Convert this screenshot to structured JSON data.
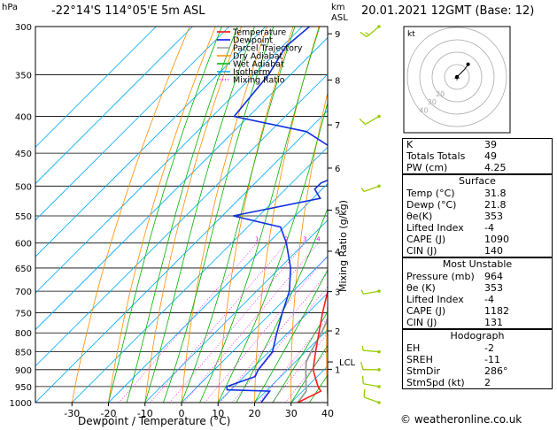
{
  "header": {
    "location": "-22°14'S  114°05'E  5m  ASL",
    "datetime": "20.01.2021  12GMT  (Base: 12)"
  },
  "axes": {
    "pressure_unit": "hPa",
    "height_unit": "km",
    "height_ref": "ASL",
    "xlabel": "Dewpoint / Temperature (°C)",
    "mixing_label": "Mixing Ratio (g/kg)",
    "lcl_label": "LCL"
  },
  "chart_data": {
    "type": "skew-t",
    "pressure_levels": [
      300,
      350,
      400,
      450,
      500,
      550,
      600,
      650,
      700,
      750,
      800,
      850,
      900,
      950,
      1000
    ],
    "temperature_ticks": [
      -30,
      -20,
      -10,
      0,
      10,
      20,
      30,
      40
    ],
    "xlim": [
      -40,
      40
    ],
    "ylim": [
      1000,
      300
    ],
    "km_ticks": [
      {
        "km": "1",
        "p": 899
      },
      {
        "km": "2",
        "p": 795
      },
      {
        "km": "3",
        "p": 701
      },
      {
        "km": "4",
        "p": 616
      },
      {
        "km": "5",
        "p": 540
      },
      {
        "km": "6",
        "p": 472
      },
      {
        "km": "7",
        "p": 411
      },
      {
        "km": "8",
        "p": 356
      },
      {
        "km": "9",
        "p": 307
      }
    ],
    "lcl_p": 878,
    "mixing_ratio_labels": [
      "1",
      "2",
      "3",
      "4",
      "6",
      "8",
      "10",
      "16",
      "20",
      "25"
    ],
    "mixing_ratio_values": [
      1,
      2,
      3,
      4,
      6,
      8,
      10,
      16,
      20,
      25
    ],
    "legend": [
      "Temperature",
      "Dewpoint",
      "Parcel Trajectory",
      "Dry Adiabat",
      "Wet Adiabat",
      "Isotherm",
      "Mixing Ratio"
    ],
    "legend_colors": [
      "#ff0000",
      "#0000ff",
      "#999999",
      "#ff8c00",
      "#00b000",
      "#00aaff",
      "#ff00ff"
    ],
    "temperature": [
      [
        1000,
        31.8
      ],
      [
        964,
        35.0
      ],
      [
        950,
        33.0
      ],
      [
        925,
        30.0
      ],
      [
        900,
        27.0
      ],
      [
        850,
        22.8
      ],
      [
        800,
        18.5
      ],
      [
        750,
        14.0
      ],
      [
        700,
        9.5
      ],
      [
        650,
        5.0
      ],
      [
        600,
        0.0
      ],
      [
        550,
        -5.0
      ],
      [
        500,
        -10.0
      ],
      [
        450,
        -15.5
      ],
      [
        420,
        -19.5
      ],
      [
        400,
        -21.5
      ],
      [
        380,
        -23.5
      ],
      [
        350,
        -28.5
      ]
    ],
    "dewpoint": [
      [
        1000,
        21.8
      ],
      [
        964,
        21.0
      ],
      [
        960,
        9.0
      ],
      [
        950,
        8.0
      ],
      [
        920,
        13.0
      ],
      [
        900,
        12.0
      ],
      [
        850,
        11.0
      ],
      [
        800,
        7.0
      ],
      [
        750,
        3.0
      ],
      [
        700,
        -1.0
      ],
      [
        650,
        -7.0
      ],
      [
        600,
        -15.0
      ],
      [
        570,
        -21.0
      ],
      [
        550,
        -37.0
      ],
      [
        520,
        -18.0
      ],
      [
        505,
        -22.0
      ],
      [
        495,
        -22.0
      ],
      [
        480,
        -18.0
      ],
      [
        450,
        -25.0
      ],
      [
        420,
        -40.0
      ],
      [
        400,
        -64.0
      ],
      [
        350,
        -66.0
      ],
      [
        320,
        -69.0
      ],
      [
        300,
        -68.0
      ]
    ],
    "parcel": [
      [
        1000,
        31.8
      ],
      [
        964,
        31.0
      ],
      [
        900,
        25.0
      ],
      [
        878,
        23.0
      ],
      [
        850,
        21.5
      ],
      [
        800,
        19.2
      ],
      [
        700,
        13.0
      ],
      [
        600,
        6.5
      ],
      [
        500,
        -2.5
      ],
      [
        450,
        -7.5
      ],
      [
        400,
        -14.0
      ],
      [
        350,
        -22.0
      ]
    ],
    "wind_barbs": [
      {
        "p": 1000,
        "dir": 290,
        "kt": 10
      },
      {
        "p": 950,
        "dir": 280,
        "kt": 10
      },
      {
        "p": 900,
        "dir": 270,
        "kt": 10
      },
      {
        "p": 850,
        "dir": 275,
        "kt": 5
      },
      {
        "p": 700,
        "dir": 260,
        "kt": 5
      },
      {
        "p": 500,
        "dir": 250,
        "kt": 5
      },
      {
        "p": 400,
        "dir": 240,
        "kt": 10
      },
      {
        "p": 300,
        "dir": 230,
        "kt": 15
      }
    ],
    "hodograph": {
      "unit_label": "kt",
      "rings": [
        10,
        20,
        30,
        40
      ],
      "ring_labels": [
        "10",
        "20",
        "30",
        "40"
      ],
      "trace_uv": [
        [
          0,
          0
        ],
        [
          2,
          2
        ],
        [
          5,
          5
        ],
        [
          7,
          8
        ]
      ],
      "storm_uv": [
        2,
        0.5
      ]
    }
  },
  "indices": {
    "top": [
      {
        "label": "K",
        "value": "39"
      },
      {
        "label": "Totals Totals",
        "value": "49"
      },
      {
        "label": "PW (cm)",
        "value": "4.25"
      }
    ],
    "surface_title": "Surface",
    "surface": [
      {
        "label": "Temp (°C)",
        "value": "31.8"
      },
      {
        "label": "Dewp (°C)",
        "value": "21.8"
      },
      {
        "label": "θe(K)",
        "value": "353"
      },
      {
        "label": "Lifted Index",
        "value": "-4"
      },
      {
        "label": "CAPE (J)",
        "value": "1090"
      },
      {
        "label": "CIN (J)",
        "value": "140"
      }
    ],
    "mu_title": "Most Unstable",
    "mu": [
      {
        "label": "Pressure (mb)",
        "value": "964"
      },
      {
        "label": "θe (K)",
        "value": "353"
      },
      {
        "label": "Lifted Index",
        "value": "-4"
      },
      {
        "label": "CAPE (J)",
        "value": "1182"
      },
      {
        "label": "CIN (J)",
        "value": "131"
      }
    ],
    "hodo_title": "Hodograph",
    "hodo": [
      {
        "label": "EH",
        "value": "-2"
      },
      {
        "label": "SREH",
        "value": "-11"
      },
      {
        "label": "StmDir",
        "value": "286°"
      },
      {
        "label": "StmSpd (kt)",
        "value": "2"
      }
    ]
  },
  "copyright": "© weatheronline.co.uk"
}
